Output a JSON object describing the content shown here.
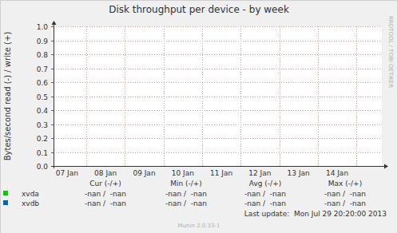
{
  "chart_data": {
    "type": "line",
    "title": "Disk throughput per device - by week",
    "y_label": "Bytes/second read (-) / write (+)",
    "categories": [
      "07 Jan",
      "08 Jan",
      "09 Jan",
      "10 Jan",
      "11 Jan",
      "12 Jan",
      "13 Jan",
      "14 Jan"
    ],
    "series": [
      {
        "name": "xvda",
        "color": "#00cc00",
        "values": [
          null,
          null,
          null,
          null,
          null,
          null,
          null,
          null
        ],
        "stats": [
          "-nan /  -nan",
          "-nan /  -nan",
          "-nan /  -nan",
          "-nan /  -nan"
        ]
      },
      {
        "name": "xvdb",
        "color": "#0066b3",
        "values": [
          null,
          null,
          null,
          null,
          null,
          null,
          null,
          null
        ],
        "stats": [
          "-nan /  -nan",
          "-nan /  -nan",
          "-nan /  -nan",
          "-nan /  -nan"
        ]
      }
    ],
    "stat_headers": [
      "Cur (-/+)",
      "Min (-/+)",
      "Avg (-/+)",
      "Max (-/+)"
    ],
    "ylim": [
      0,
      1
    ],
    "yticks": [
      {
        "value": 0,
        "label": "0.0"
      },
      0.1,
      0.2,
      0.3,
      0.4,
      0.5,
      0.6,
      0.7,
      0.8,
      0.9,
      {
        "value": 1,
        "label": "1.0"
      }
    ],
    "grid": true,
    "last_update": "Last update:  Mon Jul 29 20:20:00 2013",
    "footer": "Munin 2.0.33-1",
    "watermark": "RRDTOOL / TOBI OETIKER"
  }
}
